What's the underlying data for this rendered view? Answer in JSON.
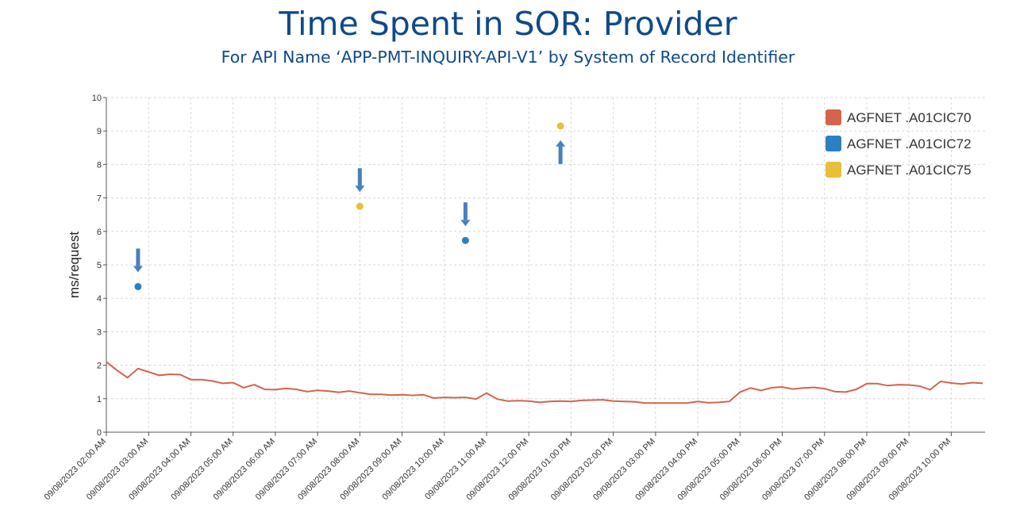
{
  "title": "Time Spent in SOR: Provider",
  "subtitle": "For API Name ‘APP-PMT-INQUIRY-API-V1’ by System of Record Identifier",
  "chart_data": {
    "type": "line",
    "ylabel": "ms/request",
    "ylim": [
      0,
      10
    ],
    "yticks": [
      0,
      1,
      2,
      3,
      4,
      5,
      6,
      7,
      8,
      9,
      10
    ],
    "xlim": [
      2.0,
      22.8
    ],
    "x_tick_labels": [
      "09/08/2023 02:00 AM",
      "09/08/2023 03:00 AM",
      "09/08/2023 04:00 AM",
      "09/08/2023 05:00 AM",
      "09/08/2023 06:00 AM",
      "09/08/2023 07:00 AM",
      "09/08/2023 08:00 AM",
      "09/08/2023 09:00 AM",
      "09/08/2023 10:00 AM",
      "09/08/2023 11:00 AM",
      "09/08/2023 12:00 PM",
      "09/08/2023 01:00 PM",
      "09/08/2023 02:00 PM",
      "09/08/2023 03:00 PM",
      "09/08/2023 04:00 PM",
      "09/08/2023 05:00 PM",
      "09/08/2023 06:00 PM",
      "09/08/2023 07:00 PM",
      "09/08/2023 08:00 PM",
      "09/08/2023 09:00 PM",
      "09/08/2023 10:00 PM"
    ],
    "grid": true,
    "legend_position": "top-right",
    "series": [
      {
        "name": "AGFNET .A01CIC70",
        "color": "#d4644c",
        "mode": "line",
        "x": [
          2.0,
          2.25,
          2.5,
          2.75,
          3.0,
          3.25,
          3.5,
          3.75,
          4.0,
          4.25,
          4.5,
          4.75,
          5.0,
          5.25,
          5.5,
          5.75,
          6.0,
          6.25,
          6.5,
          6.75,
          7.0,
          7.25,
          7.5,
          7.75,
          8.0,
          8.25,
          8.5,
          8.75,
          9.0,
          9.25,
          9.5,
          9.75,
          10.0,
          10.25,
          10.5,
          10.75,
          11.0,
          11.25,
          11.5,
          11.75,
          12.0,
          12.25,
          12.5,
          12.75,
          13.0,
          13.25,
          13.5,
          13.75,
          14.0,
          14.25,
          14.5,
          14.75,
          15.0,
          15.25,
          15.5,
          15.75,
          16.0,
          16.25,
          16.5,
          16.75,
          17.0,
          17.25,
          17.5,
          17.75,
          18.0,
          18.25,
          18.5,
          18.75,
          19.0,
          19.25,
          19.5,
          19.75,
          20.0,
          20.25,
          20.5,
          20.75,
          21.0,
          21.25,
          21.5,
          21.75,
          22.0,
          22.25,
          22.5,
          22.75
        ],
        "values": [
          2.1,
          1.85,
          1.63,
          1.9,
          1.8,
          1.7,
          1.73,
          1.72,
          1.57,
          1.57,
          1.53,
          1.46,
          1.48,
          1.33,
          1.42,
          1.28,
          1.27,
          1.31,
          1.28,
          1.21,
          1.25,
          1.23,
          1.19,
          1.23,
          1.18,
          1.13,
          1.13,
          1.11,
          1.12,
          1.1,
          1.12,
          1.02,
          1.04,
          1.03,
          1.04,
          0.99,
          1.17,
          0.99,
          0.93,
          0.94,
          0.93,
          0.89,
          0.92,
          0.93,
          0.92,
          0.95,
          0.96,
          0.97,
          0.93,
          0.92,
          0.91,
          0.87,
          0.87,
          0.87,
          0.87,
          0.87,
          0.92,
          0.88,
          0.89,
          0.92,
          1.2,
          1.32,
          1.25,
          1.33,
          1.35,
          1.29,
          1.32,
          1.34,
          1.3,
          1.21,
          1.2,
          1.28,
          1.45,
          1.45,
          1.39,
          1.42,
          1.41,
          1.38,
          1.27,
          1.52,
          1.47,
          1.44,
          1.48,
          1.46
        ]
      },
      {
        "name": "AGFNET .A01CIC72",
        "color": "#2a80c2",
        "mode": "markers",
        "x": [
          2.75,
          10.5
        ],
        "values": [
          4.35,
          5.73
        ]
      },
      {
        "name": "AGFNET .A01CIC75",
        "color": "#e8bf3a",
        "mode": "markers",
        "x": [
          8.0,
          12.75
        ],
        "values": [
          6.75,
          9.15
        ]
      }
    ]
  },
  "colors": {
    "title": "#0f4a8a",
    "annotation_arrow": "#4a7fbf",
    "grid": "#d8d8d8",
    "axis": "#555555"
  }
}
